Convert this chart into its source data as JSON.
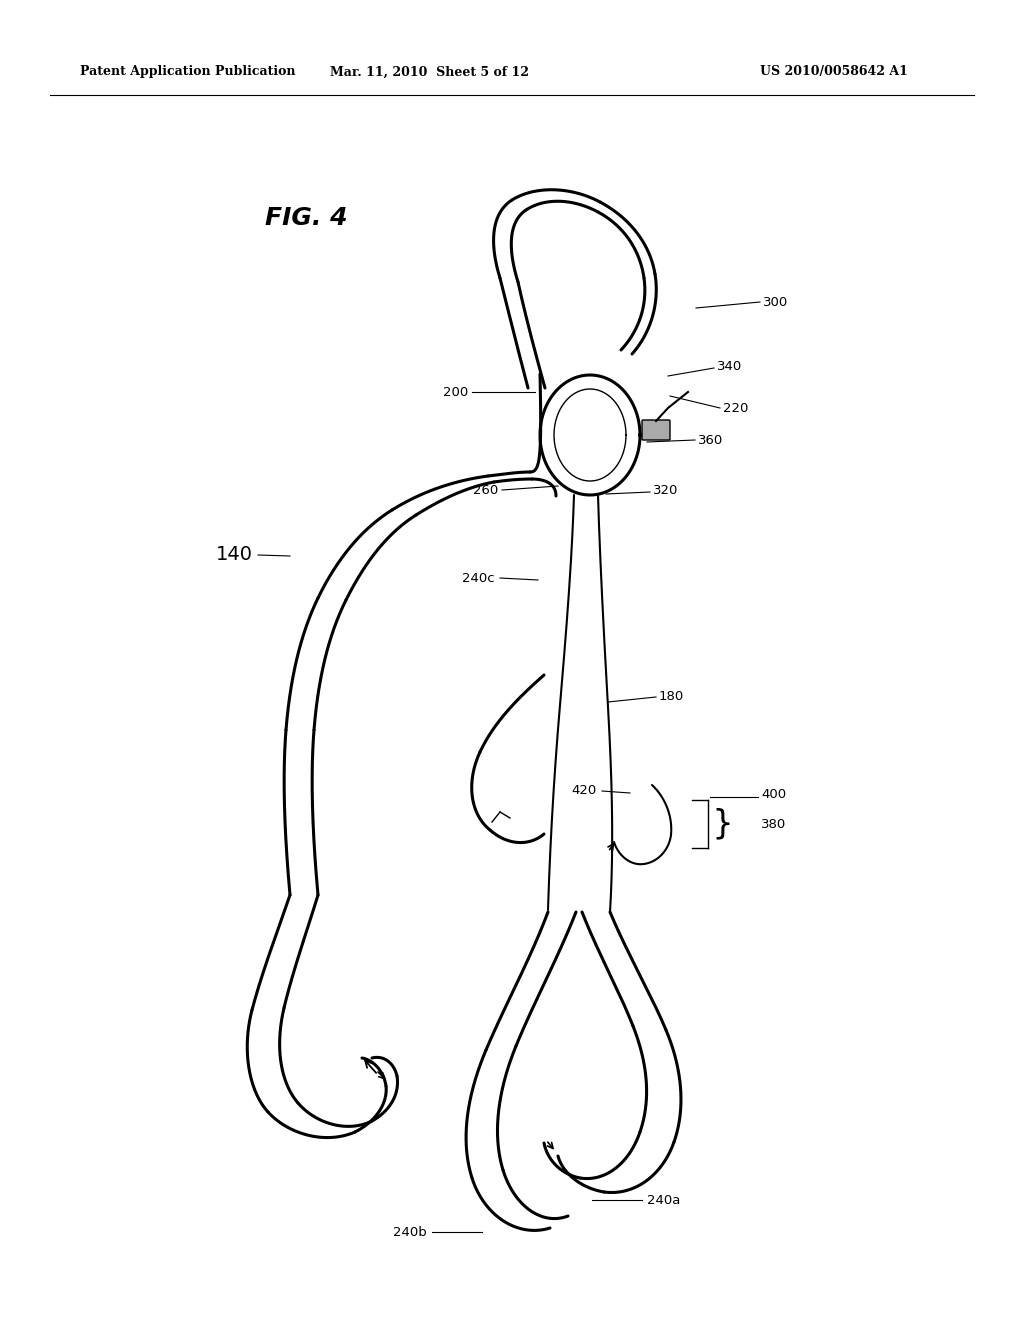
{
  "bg_color": "#ffffff",
  "header_left": "Patent Application Publication",
  "header_mid": "Mar. 11, 2010  Sheet 5 of 12",
  "header_right": "US 2010/0058642 A1",
  "fig_label": "FIG. 4",
  "line_color": "#000000",
  "lw_main": 2.2,
  "lw_wire": 1.5,
  "lw_thin": 1.0,
  "label_fontsize": 9.5,
  "header_fontsize": 9.0,
  "fig_label_fontsize": 18,
  "label_140_fontsize": 14
}
